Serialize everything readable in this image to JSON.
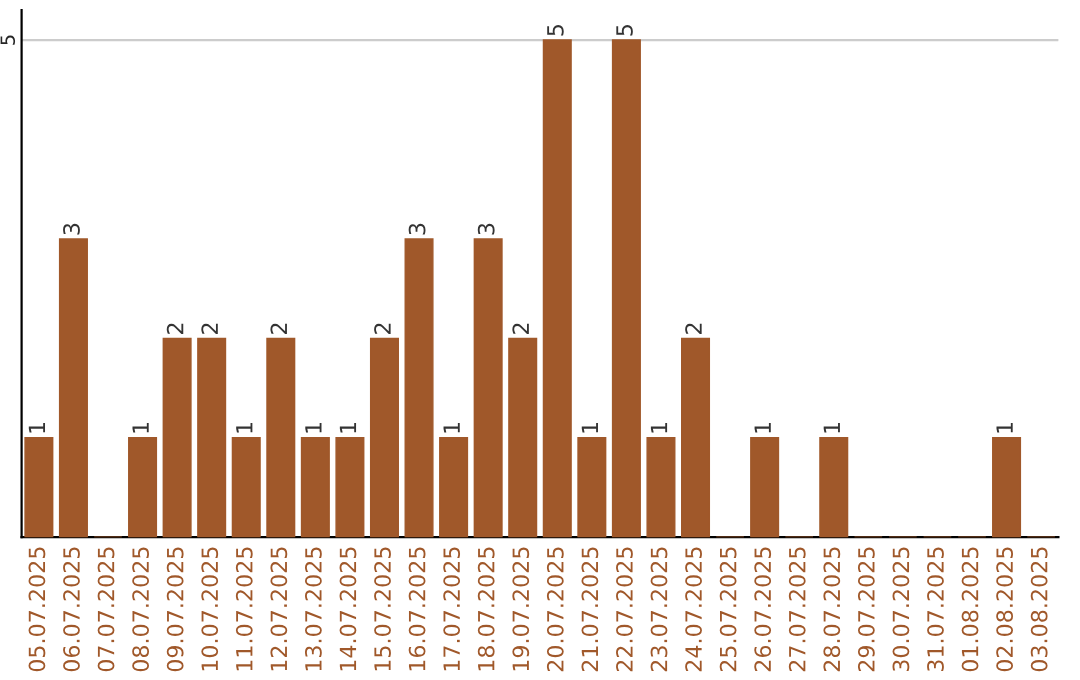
{
  "chart_data": {
    "type": "bar",
    "categories": [
      "05.07.2025",
      "06.07.2025",
      "07.07.2025",
      "08.07.2025",
      "09.07.2025",
      "10.07.2025",
      "11.07.2025",
      "12.07.2025",
      "13.07.2025",
      "14.07.2025",
      "15.07.2025",
      "16.07.2025",
      "17.07.2025",
      "18.07.2025",
      "19.07.2025",
      "20.07.2025",
      "21.07.2025",
      "22.07.2025",
      "23.07.2025",
      "24.07.2025",
      "25.07.2025",
      "26.07.2025",
      "27.07.2025",
      "28.07.2025",
      "29.07.2025",
      "30.07.2025",
      "31.07.2025",
      "01.08.2025",
      "02.08.2025",
      "03.08.2025"
    ],
    "values": [
      1,
      3,
      0,
      1,
      2,
      2,
      1,
      2,
      1,
      1,
      2,
      3,
      1,
      3,
      2,
      5,
      1,
      5,
      1,
      2,
      0,
      1,
      0,
      1,
      0,
      0,
      0,
      0,
      1,
      0
    ],
    "value_labels": [
      "1",
      "3",
      null,
      "1",
      "2",
      "2",
      "1",
      "2",
      "1",
      "1",
      "2",
      "3",
      "1",
      "3",
      "2",
      "5",
      "1",
      "5",
      "1",
      "2",
      null,
      "1",
      null,
      "1",
      null,
      null,
      null,
      null,
      "1",
      null
    ],
    "color": "#a0582a",
    "ylim": [
      0,
      5.3
    ],
    "yticks": [
      5
    ],
    "grid": "y",
    "legend": false
  }
}
